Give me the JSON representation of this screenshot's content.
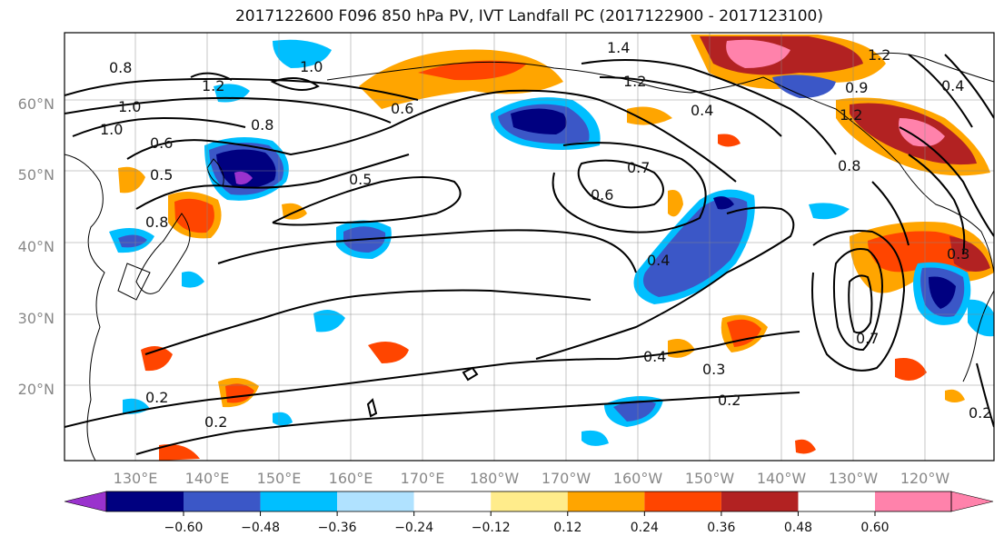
{
  "title": "2017122600 F096 850 hPa PV, IVT Landfall PC (2017122900 - 2017123100)",
  "latitude_labels": [
    "60°N",
    "50°N",
    "40°N",
    "30°N",
    "20°N"
  ],
  "longitude_labels": [
    "130°E",
    "140°E",
    "150°E",
    "160°E",
    "170°E",
    "180°W",
    "170°W",
    "160°W",
    "150°W",
    "140°W",
    "130°W",
    "120°W"
  ],
  "colorbar": {
    "colors": [
      "#9a32cd",
      "#000080",
      "#3b57c7",
      "#00bfff",
      "#b0e2ff",
      "#ffffff",
      "#ffec8b",
      "#ffa500",
      "#ff4500",
      "#b22222",
      "#ff82ab"
    ],
    "tick_labels": [
      "−0.60",
      "−0.48",
      "−0.36",
      "−0.24",
      "−0.12",
      "0.12",
      "0.24",
      "0.36",
      "0.48",
      "0.60"
    ]
  },
  "contour_labels": [
    "0.8",
    "1.0",
    "1.2",
    "1.0",
    "0.6",
    "0.5",
    "0.8",
    "1.0",
    "0.8",
    "0.5",
    "0.6",
    "0.7",
    "0.6",
    "0.4",
    "0.4",
    "0.3",
    "0.2",
    "0.2",
    "0.2",
    "1.4",
    "1.2",
    "0.4",
    "1.2",
    "0.8",
    "1.2",
    "0.4",
    "0.7",
    "0.3",
    "0.2",
    "0.9"
  ]
}
